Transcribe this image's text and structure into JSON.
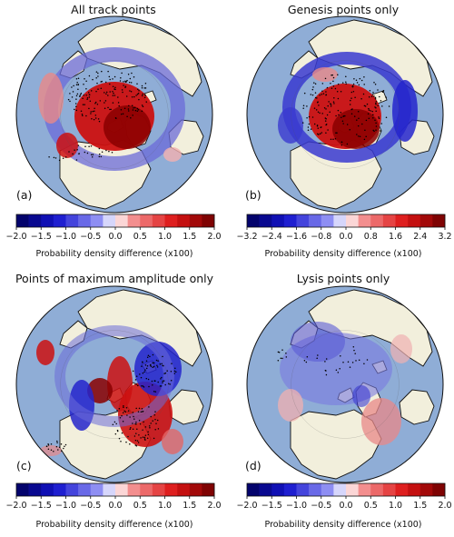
{
  "chart_data": [
    {
      "type": "heatmap",
      "projection": "north polar stereographic",
      "title": "All track points",
      "panel_label": "(a)",
      "colorbar": {
        "label": "Probability density difference (x100)",
        "range": [
          -2.0,
          2.0
        ],
        "ticks": [
          "−2.0",
          "−1.5",
          "−1.0",
          "−0.5",
          "0.0",
          "0.5",
          "1.0",
          "1.5",
          "2.0"
        ],
        "colormap": "seismic"
      }
    },
    {
      "type": "heatmap",
      "projection": "north polar stereographic",
      "title": "Genesis points only",
      "panel_label": "(b)",
      "colorbar": {
        "label": "Probability density difference (x100)",
        "range": [
          -3.2,
          3.2
        ],
        "ticks": [
          "−3.2",
          "−2.4",
          "−1.6",
          "−0.8",
          "0.0",
          "0.8",
          "1.6",
          "2.4",
          "3.2"
        ],
        "colormap": "seismic"
      }
    },
    {
      "type": "heatmap",
      "projection": "north polar stereographic",
      "title": "Points of maximum amplitude only",
      "panel_label": "(c)",
      "colorbar": {
        "label": "Probability density difference (x100)",
        "range": [
          -2.0,
          2.0
        ],
        "ticks": [
          "−2.0",
          "−1.5",
          "−1.0",
          "−0.5",
          "0.0",
          "0.5",
          "1.0",
          "1.5",
          "2.0"
        ],
        "colormap": "seismic"
      }
    },
    {
      "type": "heatmap",
      "projection": "north polar stereographic",
      "title": "Lysis points only",
      "panel_label": "(d)",
      "colorbar": {
        "label": "Probability density difference (x100)",
        "range": [
          -2.0,
          2.0
        ],
        "ticks": [
          "−2.0",
          "−1.5",
          "−1.0",
          "−0.5",
          "0.0",
          "0.5",
          "1.0",
          "1.5",
          "2.0"
        ],
        "colormap": "seismic"
      }
    }
  ],
  "colors": {
    "ocean": "#8fadd6",
    "land": "#f2efdc",
    "coast": "#111111",
    "positive": "#cc0000",
    "negative": "#1a1acc",
    "significance_dots": "#000000"
  }
}
